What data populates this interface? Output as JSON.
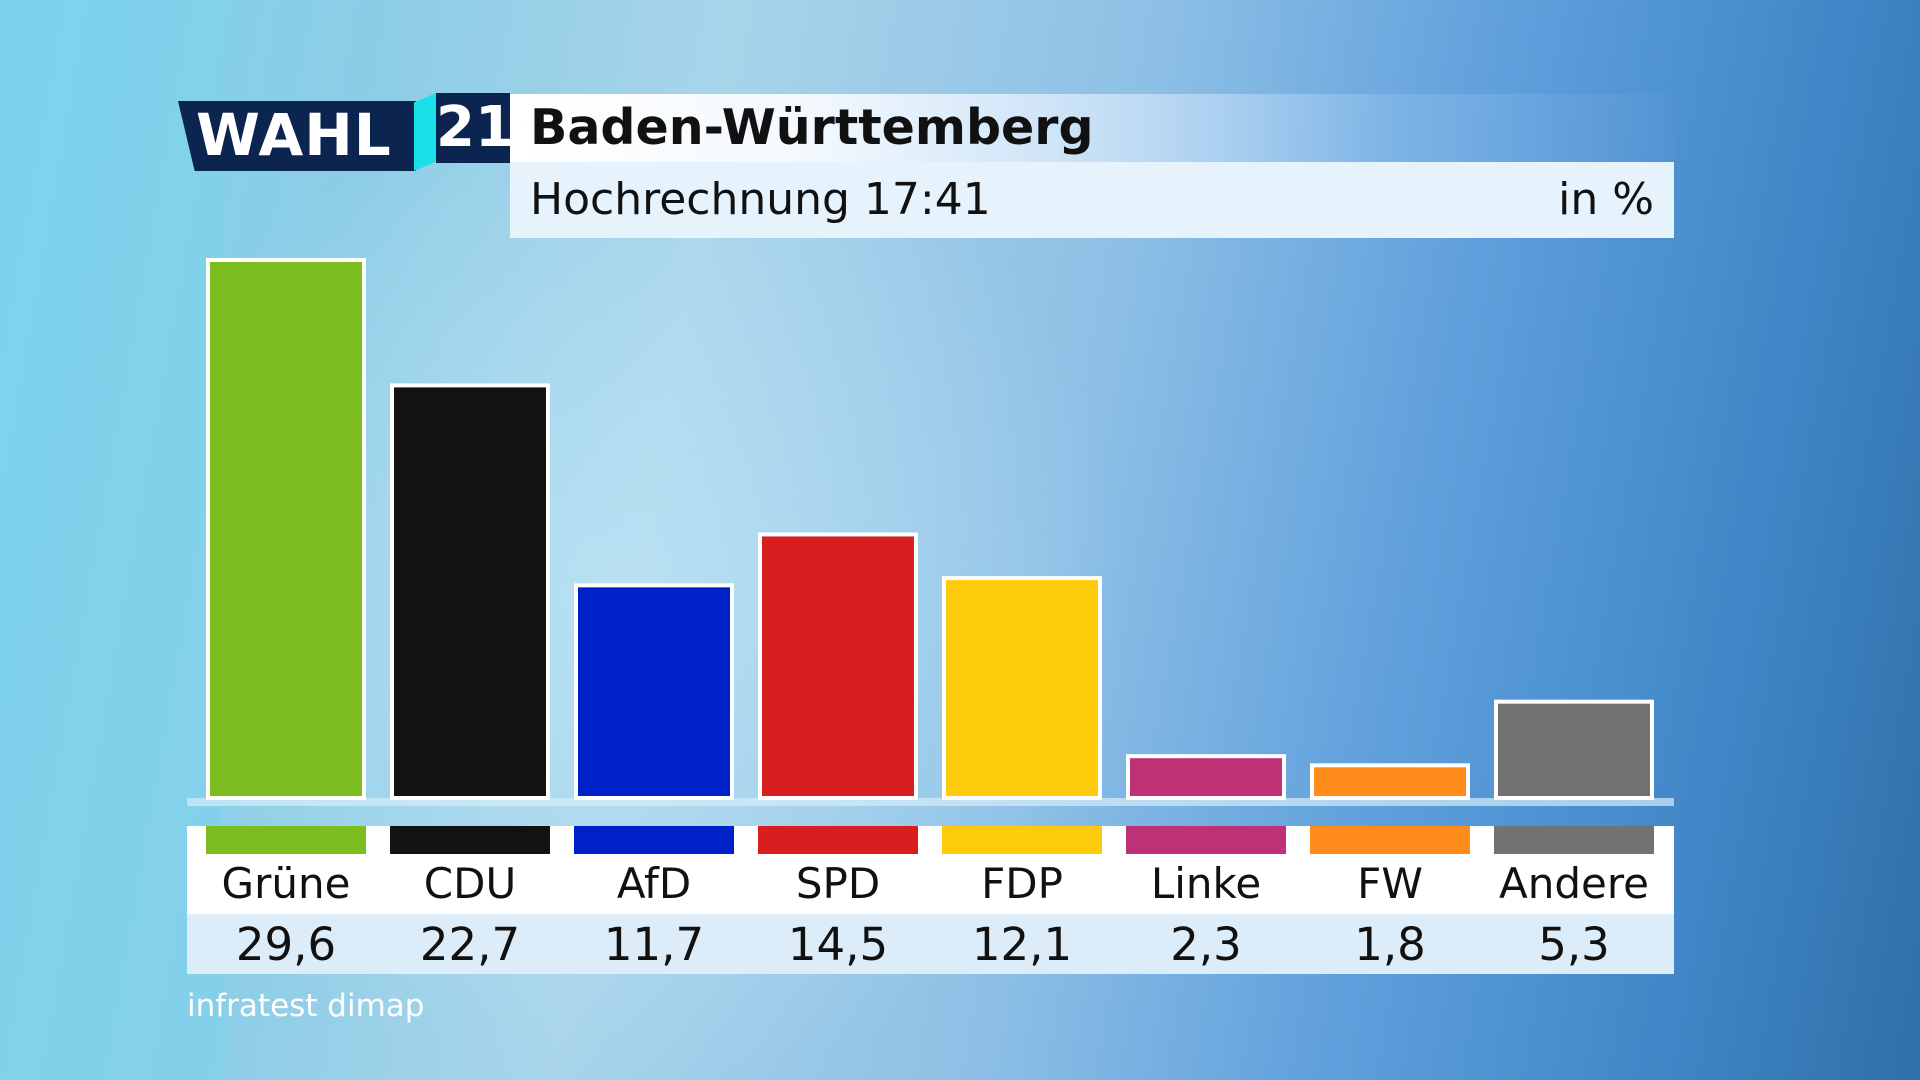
{
  "header": {
    "logo_text": "WAHL",
    "logo_year": "21",
    "title": "Baden-Württemberg",
    "subtitle": "Hochrechnung 17:41",
    "unit": "in %"
  },
  "source": "infratest dimap",
  "colors": {
    "logo_navy": "#0c2550",
    "logo_accent": "#19e0e6"
  },
  "chart_data": {
    "type": "bar",
    "title": "Baden-Württemberg",
    "subtitle": "Hochrechnung 17:41",
    "ylabel": "in %",
    "ylim": [
      0,
      30
    ],
    "grid": false,
    "legend": "none",
    "categories": [
      "Grüne",
      "CDU",
      "AfD",
      "SPD",
      "FDP",
      "Linke",
      "FW",
      "Andere"
    ],
    "values": [
      29.6,
      22.7,
      11.7,
      14.5,
      12.1,
      2.3,
      1.8,
      5.3
    ],
    "value_labels": [
      "29,6",
      "22,7",
      "11,7",
      "14,5",
      "12,1",
      "2,3",
      "1,8",
      "5,3"
    ],
    "colors": [
      "#7bbd1e",
      "#121212",
      "#0021c8",
      "#d71f1f",
      "#ffcc0d",
      "#be3175",
      "#ff8c1a",
      "#727272"
    ]
  }
}
